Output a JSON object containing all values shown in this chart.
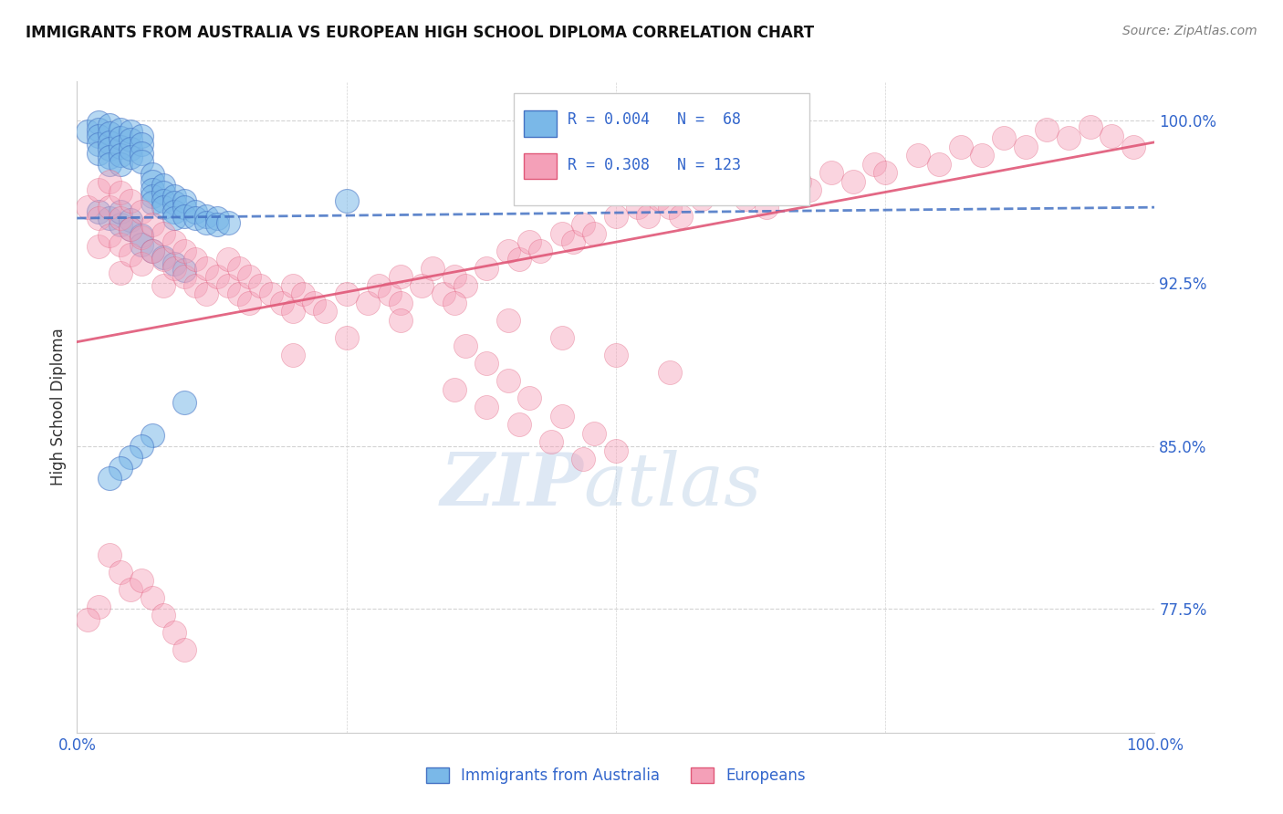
{
  "title": "IMMIGRANTS FROM AUSTRALIA VS EUROPEAN HIGH SCHOOL DIPLOMA CORRELATION CHART",
  "source": "Source: ZipAtlas.com",
  "ylabel": "High School Diploma",
  "color_blue": "#7ab8e8",
  "color_blue_line": "#4472c4",
  "color_pink": "#f4a0b8",
  "color_pink_line": "#e05878",
  "color_label": "#3366cc",
  "xmin": 0.0,
  "xmax": 1.0,
  "ymin": 0.718,
  "ymax": 1.018,
  "ytick_vals": [
    0.775,
    0.85,
    0.925,
    1.0
  ],
  "ytick_labels": [
    "77.5%",
    "85.0%",
    "92.5%",
    "100.0%"
  ],
  "blue_trend_x0": 0.0,
  "blue_trend_x1": 1.0,
  "blue_trend_y0": 0.955,
  "blue_trend_y1": 0.96,
  "pink_trend_x0": 0.0,
  "pink_trend_x1": 1.0,
  "pink_trend_y0": 0.898,
  "pink_trend_y1": 0.99,
  "blue_x": [
    0.01,
    0.02,
    0.02,
    0.02,
    0.02,
    0.02,
    0.03,
    0.03,
    0.03,
    0.03,
    0.03,
    0.03,
    0.04,
    0.04,
    0.04,
    0.04,
    0.04,
    0.05,
    0.05,
    0.05,
    0.05,
    0.06,
    0.06,
    0.06,
    0.06,
    0.07,
    0.07,
    0.07,
    0.07,
    0.07,
    0.08,
    0.08,
    0.08,
    0.08,
    0.09,
    0.09,
    0.09,
    0.09,
    0.1,
    0.1,
    0.1,
    0.11,
    0.11,
    0.12,
    0.12,
    0.13,
    0.13,
    0.14,
    0.02,
    0.03,
    0.04,
    0.04,
    0.05,
    0.05,
    0.06,
    0.06,
    0.07,
    0.08,
    0.09,
    0.1,
    0.25,
    0.1,
    0.07,
    0.06,
    0.05,
    0.04,
    0.03
  ],
  "blue_y": [
    0.995,
    0.999,
    0.996,
    0.993,
    0.989,
    0.985,
    0.998,
    0.994,
    0.99,
    0.987,
    0.983,
    0.98,
    0.996,
    0.992,
    0.988,
    0.984,
    0.98,
    0.995,
    0.991,
    0.987,
    0.983,
    0.993,
    0.989,
    0.985,
    0.981,
    0.975,
    0.972,
    0.968,
    0.965,
    0.962,
    0.97,
    0.967,
    0.963,
    0.96,
    0.965,
    0.962,
    0.958,
    0.955,
    0.963,
    0.96,
    0.956,
    0.958,
    0.955,
    0.956,
    0.953,
    0.955,
    0.952,
    0.953,
    0.958,
    0.955,
    0.952,
    0.958,
    0.954,
    0.95,
    0.947,
    0.943,
    0.94,
    0.937,
    0.934,
    0.931,
    0.963,
    0.87,
    0.855,
    0.85,
    0.845,
    0.84,
    0.835
  ],
  "pink_x": [
    0.01,
    0.02,
    0.02,
    0.02,
    0.03,
    0.03,
    0.03,
    0.04,
    0.04,
    0.04,
    0.04,
    0.05,
    0.05,
    0.05,
    0.06,
    0.06,
    0.06,
    0.07,
    0.07,
    0.08,
    0.08,
    0.08,
    0.09,
    0.09,
    0.1,
    0.1,
    0.11,
    0.11,
    0.12,
    0.12,
    0.13,
    0.14,
    0.14,
    0.15,
    0.15,
    0.16,
    0.16,
    0.17,
    0.18,
    0.19,
    0.2,
    0.2,
    0.21,
    0.22,
    0.23,
    0.25,
    0.27,
    0.28,
    0.29,
    0.3,
    0.3,
    0.32,
    0.33,
    0.34,
    0.35,
    0.36,
    0.38,
    0.4,
    0.41,
    0.42,
    0.43,
    0.45,
    0.46,
    0.47,
    0.48,
    0.5,
    0.52,
    0.53,
    0.54,
    0.55,
    0.56,
    0.58,
    0.6,
    0.62,
    0.64,
    0.65,
    0.67,
    0.68,
    0.7,
    0.72,
    0.74,
    0.75,
    0.78,
    0.8,
    0.82,
    0.84,
    0.86,
    0.88,
    0.9,
    0.92,
    0.94,
    0.96,
    0.98,
    0.3,
    0.25,
    0.2,
    0.35,
    0.4,
    0.45,
    0.5,
    0.55,
    0.36,
    0.38,
    0.4,
    0.42,
    0.45,
    0.48,
    0.5,
    0.35,
    0.38,
    0.41,
    0.44,
    0.47,
    0.03,
    0.04,
    0.05,
    0.02,
    0.01,
    0.06,
    0.07,
    0.08,
    0.09,
    0.1
  ],
  "pink_y": [
    0.96,
    0.968,
    0.955,
    0.942,
    0.972,
    0.96,
    0.947,
    0.967,
    0.955,
    0.943,
    0.93,
    0.963,
    0.95,
    0.938,
    0.958,
    0.946,
    0.934,
    0.952,
    0.94,
    0.948,
    0.936,
    0.924,
    0.944,
    0.932,
    0.94,
    0.928,
    0.936,
    0.924,
    0.932,
    0.92,
    0.928,
    0.936,
    0.924,
    0.932,
    0.92,
    0.928,
    0.916,
    0.924,
    0.92,
    0.916,
    0.924,
    0.912,
    0.92,
    0.916,
    0.912,
    0.92,
    0.916,
    0.924,
    0.92,
    0.928,
    0.916,
    0.924,
    0.932,
    0.92,
    0.928,
    0.924,
    0.932,
    0.94,
    0.936,
    0.944,
    0.94,
    0.948,
    0.944,
    0.952,
    0.948,
    0.956,
    0.96,
    0.956,
    0.964,
    0.96,
    0.956,
    0.964,
    0.968,
    0.964,
    0.96,
    0.968,
    0.972,
    0.968,
    0.976,
    0.972,
    0.98,
    0.976,
    0.984,
    0.98,
    0.988,
    0.984,
    0.992,
    0.988,
    0.996,
    0.992,
    0.997,
    0.993,
    0.988,
    0.908,
    0.9,
    0.892,
    0.916,
    0.908,
    0.9,
    0.892,
    0.884,
    0.896,
    0.888,
    0.88,
    0.872,
    0.864,
    0.856,
    0.848,
    0.876,
    0.868,
    0.86,
    0.852,
    0.844,
    0.8,
    0.792,
    0.784,
    0.776,
    0.77,
    0.788,
    0.78,
    0.772,
    0.764,
    0.756
  ]
}
